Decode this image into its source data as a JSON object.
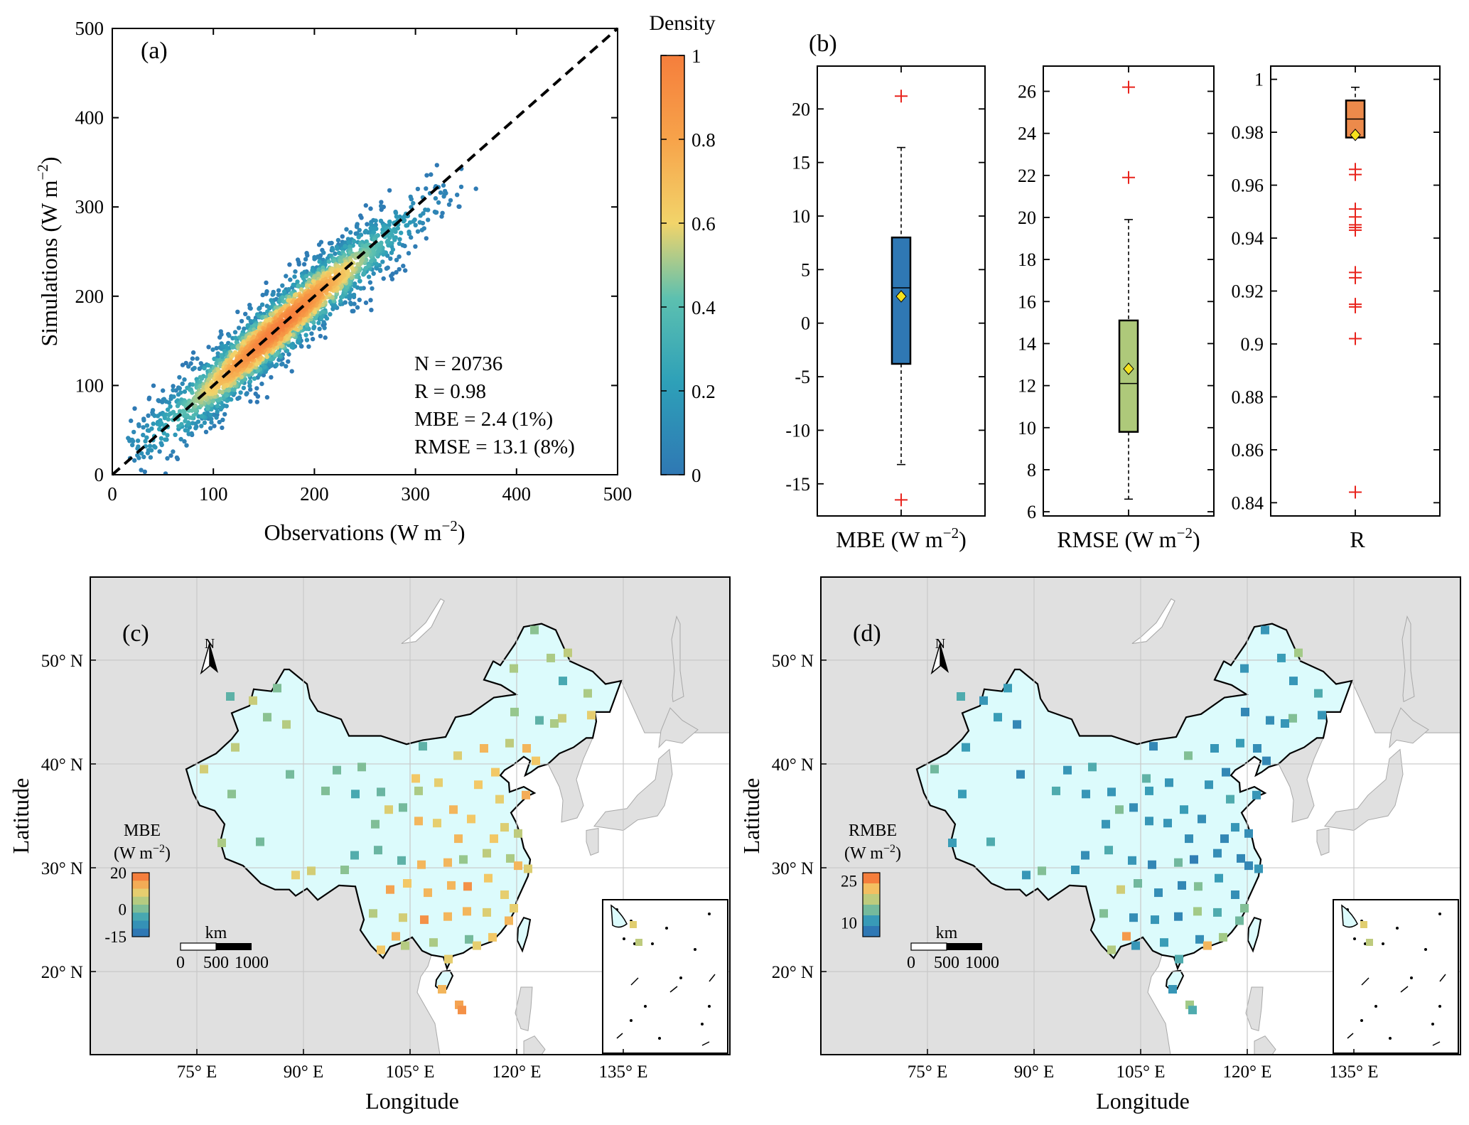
{
  "panels": {
    "a": {
      "label": "(a)",
      "xlabel": "Observations (W m",
      "xlabel_exp": "−2",
      "xlabel_end": ")",
      "ylabel": "Simulations (W m",
      "ylabel_exp": "−2",
      "ylabel_end": ")",
      "stats": [
        "N = 20736",
        "R = 0.98",
        "MBE = 2.4 (1%)",
        "RMSE = 13.1 (8%)"
      ],
      "colorbar_title": "Density",
      "colorbar_ticks": [
        "0",
        "0.2",
        "0.4",
        "0.6",
        "0.8",
        "1"
      ]
    },
    "b": {
      "label": "(b)",
      "subplots": [
        {
          "label_main": "MBE (W m",
          "label_exp": "−2",
          "label_end": ")"
        },
        {
          "label_main": "RMSE (W m",
          "label_exp": "−2",
          "label_end": ")"
        },
        {
          "label_main": "R",
          "label_exp": "",
          "label_end": ""
        }
      ]
    },
    "c": {
      "label": "(c)",
      "legend_title": "MBE",
      "legend_unit": "(W m",
      "legend_unit_exp": "−2",
      "legend_unit_end": ")",
      "legend_ticks": [
        "20",
        "0",
        "-15"
      ],
      "scalebar_unit": "km",
      "scalebar_ticks": [
        "0",
        "500",
        "1000"
      ],
      "north": "N",
      "xlabel": "Longitude",
      "ylabel": "Latitude"
    },
    "d": {
      "label": "(d)",
      "legend_title": "RMBE",
      "legend_unit": "(W m",
      "legend_unit_exp": "−2",
      "legend_unit_end": ")",
      "legend_ticks": [
        "25",
        "10"
      ],
      "scalebar_unit": "km",
      "scalebar_ticks": [
        "0",
        "500",
        "1000"
      ],
      "north": "N",
      "xlabel": "Longitude",
      "ylabel": "Latitude"
    }
  },
  "colors": {
    "density_low": "#2f78b4",
    "density_mid": "#f2d46a",
    "density_high": "#f57e3c",
    "mbe_box": "#2f78b4",
    "rmse_box": "#aec97a",
    "r_box": "#ec8a4b",
    "outlier": "#e8231c",
    "mean_marker": "#f5e21c",
    "land_china": "#dcfbfc",
    "land_other": "#e0e0e0",
    "sea": "#ffffff"
  },
  "chart_data": [
    {
      "id": "a",
      "type": "scatter",
      "title": "",
      "xlabel": "Observations (W m−2)",
      "ylabel": "Simulations (W m−2)",
      "xlim": [
        0,
        500
      ],
      "ylim": [
        0,
        500
      ],
      "xticks": [
        0,
        100,
        200,
        300,
        400,
        500
      ],
      "yticks": [
        0,
        100,
        200,
        300,
        400,
        500
      ],
      "reference_line": {
        "style": "dashed",
        "slope": 1,
        "intercept": 0
      },
      "cloud": {
        "x_range": [
          15,
          365
        ],
        "center_line": [
          [
            30,
            35
          ],
          [
            100,
            100
          ],
          [
            200,
            200
          ],
          [
            300,
            290
          ],
          [
            350,
            330
          ]
        ],
        "spread_y": 20,
        "point_count": 20736,
        "color_by": "density"
      },
      "stats": {
        "N": 20736,
        "R": 0.98,
        "MBE": 2.4,
        "MBE_pct": 1,
        "RMSE": 13.1,
        "RMSE_pct": 8
      },
      "colorbar": {
        "label": "Density",
        "range": [
          0,
          1
        ],
        "ticks": [
          0,
          0.2,
          0.4,
          0.6,
          0.8,
          1
        ]
      }
    },
    {
      "id": "b1",
      "type": "box",
      "label": "MBE (W m−2)",
      "ylim": [
        -18,
        24
      ],
      "yticks": [
        -15,
        -10,
        -5,
        0,
        5,
        10,
        15,
        20
      ],
      "whisker_low": -13.2,
      "q1": -3.8,
      "median": 3.3,
      "q3": 8.0,
      "whisker_high": 16.4,
      "mean": 2.5,
      "outliers": [
        21.2,
        -16.5
      ]
    },
    {
      "id": "b2",
      "type": "box",
      "label": "RMSE (W m−2)",
      "ylim": [
        5.8,
        27.2
      ],
      "yticks": [
        6,
        8,
        10,
        12,
        14,
        16,
        18,
        20,
        22,
        24,
        26
      ],
      "whisker_low": 6.6,
      "q1": 9.8,
      "median": 12.1,
      "q3": 15.1,
      "whisker_high": 19.9,
      "mean": 12.8,
      "outliers": [
        26.2,
        21.9
      ]
    },
    {
      "id": "b3",
      "type": "box",
      "label": "R",
      "ylim": [
        0.835,
        1.005
      ],
      "yticks": [
        0.84,
        0.86,
        0.88,
        0.9,
        0.92,
        0.94,
        0.96,
        0.98,
        1
      ],
      "yticklabels": [
        "0.84",
        "0.86",
        "0.88",
        "0.9",
        "0.92",
        "0.94",
        "0.96",
        "0.98",
        "1"
      ],
      "whisker_low": 0.978,
      "q1": 0.978,
      "median": 0.985,
      "q3": 0.992,
      "whisker_high": 0.997,
      "mean": 0.979,
      "outliers": [
        0.966,
        0.964,
        0.951,
        0.948,
        0.945,
        0.944,
        0.943,
        0.927,
        0.925,
        0.915,
        0.914,
        0.902,
        0.844
      ]
    },
    {
      "id": "c",
      "type": "map",
      "variable": "MBE",
      "xlabel": "Longitude",
      "ylabel": "Latitude",
      "lon_range": [
        60,
        150
      ],
      "lat_range": [
        12,
        58
      ],
      "lon_ticks": [
        75,
        90,
        105,
        120,
        135
      ],
      "lat_ticks": [
        20,
        30,
        40,
        50
      ],
      "lon_ticklabels": [
        "75° E",
        "90° E",
        "105° E",
        "120° E",
        "135° E"
      ],
      "lat_ticklabels": [
        "20° N",
        "30° N",
        "40° N",
        "50° N"
      ],
      "legend": {
        "title": "MBE (W m−2)",
        "range": [
          -15,
          20
        ],
        "ticks": [
          20,
          0,
          -15
        ]
      },
      "scale_bar_km": [
        0,
        500,
        1000
      ],
      "stations": [
        [
          122.5,
          52.9,
          1
        ],
        [
          124.8,
          50.2,
          4
        ],
        [
          126.5,
          48.0,
          -5
        ],
        [
          127.2,
          50.7,
          6
        ],
        [
          119.6,
          49.2,
          4
        ],
        [
          130.0,
          46.8,
          4
        ],
        [
          126.4,
          44.4,
          7
        ],
        [
          123.2,
          44.2,
          -3
        ],
        [
          125.3,
          43.9,
          4
        ],
        [
          119.7,
          45.0,
          2
        ],
        [
          130.5,
          44.7,
          10
        ],
        [
          119.0,
          42.0,
          6
        ],
        [
          121.4,
          41.5,
          14
        ],
        [
          122.7,
          40.3,
          12
        ],
        [
          117.0,
          39.2,
          12
        ],
        [
          115.4,
          41.5,
          14
        ],
        [
          111.7,
          40.8,
          9
        ],
        [
          106.8,
          41.7,
          -3
        ],
        [
          109.0,
          38.2,
          10
        ],
        [
          105.8,
          38.6,
          12
        ],
        [
          111.1,
          35.6,
          14
        ],
        [
          114.6,
          38.0,
          12
        ],
        [
          117.6,
          36.6,
          10
        ],
        [
          121.3,
          37.0,
          15
        ],
        [
          113.6,
          34.7,
          12
        ],
        [
          106.2,
          37.4,
          4
        ],
        [
          104.0,
          35.8,
          -1
        ],
        [
          98.2,
          39.7,
          0
        ],
        [
          94.7,
          39.4,
          -1
        ],
        [
          87.6,
          43.8,
          5
        ],
        [
          84.9,
          44.5,
          1
        ],
        [
          80.4,
          41.6,
          6
        ],
        [
          79.7,
          46.5,
          -3
        ],
        [
          86.3,
          47.3,
          0
        ],
        [
          82.9,
          46.1,
          7
        ],
        [
          76.0,
          39.5,
          8
        ],
        [
          79.9,
          37.1,
          1
        ],
        [
          88.1,
          39.0,
          -1
        ],
        [
          93.1,
          37.4,
          0
        ],
        [
          100.9,
          37.3,
          -2
        ],
        [
          97.3,
          37.1,
          -5
        ],
        [
          100.1,
          34.2,
          0
        ],
        [
          102.0,
          35.6,
          9
        ],
        [
          106.2,
          34.5,
          14
        ],
        [
          108.8,
          34.3,
          10
        ],
        [
          111.8,
          32.8,
          14
        ],
        [
          116.8,
          32.8,
          12
        ],
        [
          118.3,
          33.9,
          9
        ],
        [
          120.2,
          33.3,
          6
        ],
        [
          119.1,
          30.9,
          4
        ],
        [
          115.8,
          31.4,
          6
        ],
        [
          112.5,
          30.8,
          2
        ],
        [
          110.3,
          30.5,
          14
        ],
        [
          106.6,
          30.3,
          14
        ],
        [
          103.8,
          30.7,
          -3
        ],
        [
          100.5,
          31.7,
          -2
        ],
        [
          102.2,
          27.9,
          16
        ],
        [
          104.6,
          28.5,
          12
        ],
        [
          107.5,
          27.6,
          14
        ],
        [
          110.8,
          28.3,
          14
        ],
        [
          113.1,
          28.2,
          18
        ],
        [
          116.0,
          29.0,
          12
        ],
        [
          118.3,
          27.4,
          10
        ],
        [
          120.2,
          30.2,
          14
        ],
        [
          121.6,
          29.9,
          9
        ],
        [
          119.6,
          26.1,
          10
        ],
        [
          115.8,
          25.7,
          9
        ],
        [
          113.0,
          25.8,
          14
        ],
        [
          110.3,
          25.3,
          14
        ],
        [
          107.0,
          25.0,
          18
        ],
        [
          104.0,
          25.2,
          8
        ],
        [
          99.8,
          25.6,
          5
        ],
        [
          100.9,
          22.1,
          12
        ],
        [
          103.0,
          23.4,
          14
        ],
        [
          108.3,
          22.8,
          4
        ],
        [
          110.4,
          21.2,
          10
        ],
        [
          113.3,
          23.1,
          -1
        ],
        [
          116.6,
          23.3,
          12
        ],
        [
          109.5,
          18.3,
          14
        ],
        [
          111.9,
          16.8,
          16
        ],
        [
          112.3,
          16.3,
          18
        ],
        [
          91.1,
          29.7,
          8
        ],
        [
          88.9,
          29.3,
          10
        ],
        [
          83.9,
          32.5,
          -1
        ],
        [
          78.5,
          32.4,
          4
        ],
        [
          97.2,
          31.2,
          -4
        ],
        [
          95.8,
          29.8,
          1
        ],
        [
          114.4,
          22.5,
          10
        ],
        [
          104.3,
          22.5,
          5
        ],
        [
          118.9,
          24.9,
          14
        ]
      ]
    },
    {
      "id": "d",
      "type": "map",
      "variable": "RMBE",
      "xlabel": "Longitude",
      "ylabel": "Latitude",
      "lon_range": [
        60,
        150
      ],
      "lat_range": [
        12,
        58
      ],
      "lon_ticks": [
        75,
        90,
        105,
        120,
        135
      ],
      "lat_ticks": [
        20,
        30,
        40,
        50
      ],
      "lon_ticklabels": [
        "75° E",
        "90° E",
        "105° E",
        "120° E",
        "135° E"
      ],
      "lat_ticklabels": [
        "20° N",
        "30° N",
        "40° N",
        "50° N"
      ],
      "legend": {
        "title": "RMBE (W m−2)",
        "range": [
          5,
          28
        ],
        "ticks": [
          25,
          10
        ]
      },
      "scale_bar_km": [
        0,
        500,
        1000
      ],
      "stations": [
        [
          122.5,
          52.9,
          9
        ],
        [
          124.8,
          50.2,
          10
        ],
        [
          126.5,
          48.0,
          9
        ],
        [
          127.2,
          50.7,
          17
        ],
        [
          119.6,
          49.2,
          9
        ],
        [
          130.0,
          46.8,
          12
        ],
        [
          126.4,
          44.4,
          15
        ],
        [
          123.2,
          44.2,
          8
        ],
        [
          125.3,
          43.9,
          9
        ],
        [
          119.7,
          45.0,
          7
        ],
        [
          130.5,
          44.7,
          9
        ],
        [
          119.0,
          42.0,
          10
        ],
        [
          121.4,
          41.5,
          8
        ],
        [
          122.7,
          40.3,
          7
        ],
        [
          117.0,
          39.2,
          7
        ],
        [
          115.4,
          41.5,
          9
        ],
        [
          111.7,
          40.8,
          15
        ],
        [
          106.8,
          41.7,
          7
        ],
        [
          109.0,
          38.2,
          9
        ],
        [
          105.8,
          38.6,
          13
        ],
        [
          111.1,
          35.6,
          10
        ],
        [
          114.6,
          38.0,
          9
        ],
        [
          117.6,
          36.6,
          12
        ],
        [
          121.3,
          37.0,
          9
        ],
        [
          113.6,
          34.7,
          8
        ],
        [
          106.2,
          37.4,
          10
        ],
        [
          104.0,
          35.8,
          8
        ],
        [
          98.2,
          39.7,
          12
        ],
        [
          94.7,
          39.4,
          9
        ],
        [
          87.6,
          43.8,
          7
        ],
        [
          84.9,
          44.5,
          10
        ],
        [
          80.4,
          41.6,
          10
        ],
        [
          79.7,
          46.5,
          12
        ],
        [
          86.3,
          47.3,
          10
        ],
        [
          82.9,
          46.1,
          9
        ],
        [
          76.0,
          39.5,
          14
        ],
        [
          79.9,
          37.1,
          10
        ],
        [
          88.1,
          39.0,
          7
        ],
        [
          93.1,
          37.4,
          12
        ],
        [
          100.9,
          37.3,
          9
        ],
        [
          97.3,
          37.1,
          9
        ],
        [
          100.1,
          34.2,
          9
        ],
        [
          102.0,
          35.6,
          15
        ],
        [
          106.2,
          34.5,
          9
        ],
        [
          108.8,
          34.3,
          9
        ],
        [
          111.8,
          32.8,
          8
        ],
        [
          116.8,
          32.8,
          7
        ],
        [
          118.3,
          33.9,
          9
        ],
        [
          120.2,
          33.3,
          8
        ],
        [
          119.1,
          30.9,
          7
        ],
        [
          115.8,
          31.4,
          8
        ],
        [
          112.5,
          30.8,
          6
        ],
        [
          110.3,
          30.5,
          14
        ],
        [
          106.6,
          30.3,
          7
        ],
        [
          103.8,
          30.7,
          9
        ],
        [
          100.5,
          31.7,
          12
        ],
        [
          102.2,
          27.9,
          20
        ],
        [
          104.6,
          28.5,
          14
        ],
        [
          107.5,
          27.6,
          8
        ],
        [
          110.8,
          28.3,
          7
        ],
        [
          113.1,
          28.2,
          15
        ],
        [
          116.0,
          29.0,
          10
        ],
        [
          118.3,
          27.4,
          8
        ],
        [
          120.2,
          30.2,
          7
        ],
        [
          121.6,
          29.9,
          9
        ],
        [
          119.6,
          26.1,
          15
        ],
        [
          115.8,
          25.7,
          12
        ],
        [
          113.0,
          25.8,
          17
        ],
        [
          110.3,
          25.3,
          7
        ],
        [
          107.0,
          25.0,
          9
        ],
        [
          104.0,
          25.2,
          8
        ],
        [
          99.8,
          25.6,
          15
        ],
        [
          100.9,
          22.1,
          18
        ],
        [
          103.0,
          23.4,
          26
        ],
        [
          108.3,
          22.8,
          10
        ],
        [
          110.4,
          21.2,
          12
        ],
        [
          113.3,
          23.1,
          8
        ],
        [
          116.6,
          23.3,
          17
        ],
        [
          109.5,
          18.3,
          9
        ],
        [
          111.9,
          16.8,
          17
        ],
        [
          112.3,
          16.3,
          12
        ],
        [
          91.1,
          29.7,
          15
        ],
        [
          88.9,
          29.3,
          9
        ],
        [
          83.9,
          32.5,
          12
        ],
        [
          78.5,
          32.4,
          10
        ],
        [
          97.2,
          31.2,
          8
        ],
        [
          95.8,
          29.8,
          9
        ],
        [
          114.4,
          22.5,
          24
        ],
        [
          104.3,
          22.5,
          9
        ],
        [
          118.9,
          24.9,
          14
        ]
      ]
    }
  ]
}
